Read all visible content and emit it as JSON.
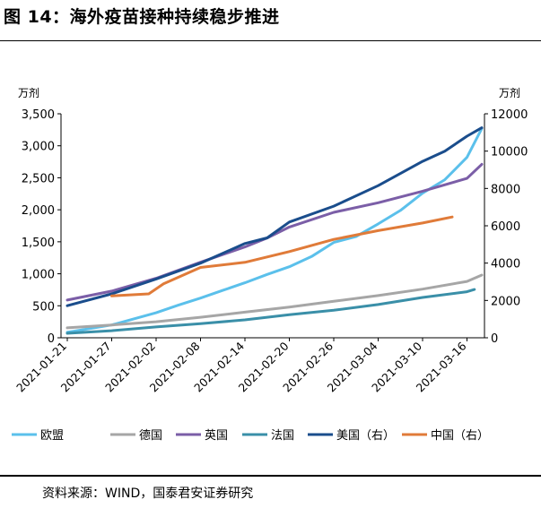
{
  "figure": {
    "title": "图 14：海外疫苗接种持续稳步推进",
    "source": "资料来源：WIND，国泰君安证券研究"
  },
  "chart_data": {
    "type": "line",
    "left_axis": {
      "unit_label": "万剂",
      "ylim": [
        0,
        3500
      ],
      "ticks": [
        0,
        500,
        1000,
        1500,
        2000,
        2500,
        3000,
        3500
      ],
      "tick_labels": [
        "0",
        "500",
        "1,000",
        "1,500",
        "2,000",
        "2,500",
        "3,000",
        "3,500"
      ]
    },
    "right_axis": {
      "unit_label": "万剂",
      "ylim": [
        0,
        12000
      ],
      "ticks": [
        0,
        2000,
        4000,
        6000,
        8000,
        10000,
        12000
      ],
      "tick_labels": [
        "0",
        "2000",
        "4000",
        "6000",
        "8000",
        "10000",
        "12000"
      ]
    },
    "x_range": [
      "2021-01-21",
      "2021-03-18"
    ],
    "x_ticks": [
      "2021-01-21",
      "2021-01-27",
      "2021-02-02",
      "2021-02-08",
      "2021-02-14",
      "2021-02-20",
      "2021-02-26",
      "2021-03-04",
      "2021-03-10",
      "2021-03-16"
    ],
    "grid": false,
    "legend_position": "bottom",
    "series": [
      {
        "name": "欧盟",
        "axis": "left",
        "color": "#5bc0eb",
        "points": [
          [
            "2021-01-21",
            85
          ],
          [
            "2021-01-27",
            200
          ],
          [
            "2021-02-02",
            390
          ],
          [
            "2021-02-05",
            510
          ],
          [
            "2021-02-08",
            620
          ],
          [
            "2021-02-11",
            740
          ],
          [
            "2021-02-14",
            860
          ],
          [
            "2021-02-17",
            990
          ],
          [
            "2021-02-20",
            1110
          ],
          [
            "2021-02-23",
            1270
          ],
          [
            "2021-02-26",
            1490
          ],
          [
            "2021-03-01",
            1580
          ],
          [
            "2021-03-04",
            1780
          ],
          [
            "2021-03-07",
            1990
          ],
          [
            "2021-03-10",
            2260
          ],
          [
            "2021-03-13",
            2470
          ],
          [
            "2021-03-16",
            2820
          ],
          [
            "2021-03-18",
            3270
          ]
        ]
      },
      {
        "name": "德国",
        "axis": "left",
        "color": "#a6a6a6",
        "points": [
          [
            "2021-01-21",
            155
          ],
          [
            "2021-01-27",
            200
          ],
          [
            "2021-02-02",
            250
          ],
          [
            "2021-02-08",
            320
          ],
          [
            "2021-02-14",
            400
          ],
          [
            "2021-02-20",
            480
          ],
          [
            "2021-02-26",
            570
          ],
          [
            "2021-03-04",
            660
          ],
          [
            "2021-03-10",
            760
          ],
          [
            "2021-03-16",
            880
          ],
          [
            "2021-03-18",
            980
          ]
        ]
      },
      {
        "name": "英国",
        "axis": "left",
        "color": "#7b5ea7",
        "points": [
          [
            "2021-01-21",
            590
          ],
          [
            "2021-01-27",
            730
          ],
          [
            "2021-02-02",
            930
          ],
          [
            "2021-02-08",
            1180
          ],
          [
            "2021-02-14",
            1420
          ],
          [
            "2021-02-17",
            1560
          ],
          [
            "2021-02-20",
            1730
          ],
          [
            "2021-02-26",
            1960
          ],
          [
            "2021-03-04",
            2110
          ],
          [
            "2021-03-10",
            2290
          ],
          [
            "2021-03-16",
            2490
          ],
          [
            "2021-03-18",
            2710
          ]
        ]
      },
      {
        "name": "法国",
        "axis": "left",
        "color": "#3a8fa8",
        "points": [
          [
            "2021-01-21",
            70
          ],
          [
            "2021-01-27",
            110
          ],
          [
            "2021-02-02",
            170
          ],
          [
            "2021-02-08",
            220
          ],
          [
            "2021-02-14",
            280
          ],
          [
            "2021-02-20",
            360
          ],
          [
            "2021-02-26",
            430
          ],
          [
            "2021-03-04",
            520
          ],
          [
            "2021-03-10",
            630
          ],
          [
            "2021-03-16",
            720
          ],
          [
            "2021-03-17",
            755
          ]
        ]
      },
      {
        "name": "美国（右）",
        "axis": "right",
        "color": "#1a4d8c",
        "points": [
          [
            "2021-01-21",
            1720
          ],
          [
            "2021-01-27",
            2350
          ],
          [
            "2021-02-02",
            3150
          ],
          [
            "2021-02-08",
            4000
          ],
          [
            "2021-02-14",
            5050
          ],
          [
            "2021-02-17",
            5350
          ],
          [
            "2021-02-20",
            6200
          ],
          [
            "2021-02-26",
            7050
          ],
          [
            "2021-03-04",
            8150
          ],
          [
            "2021-03-10",
            9450
          ],
          [
            "2021-03-13",
            10000
          ],
          [
            "2021-03-16",
            10800
          ],
          [
            "2021-03-18",
            11250
          ]
        ]
      },
      {
        "name": "中国（右）",
        "axis": "right",
        "color": "#e07b39",
        "points": [
          [
            "2021-01-27",
            2240
          ],
          [
            "2021-02-01",
            2350
          ],
          [
            "2021-02-03",
            2890
          ],
          [
            "2021-02-08",
            3770
          ],
          [
            "2021-02-14",
            4040
          ],
          [
            "2021-02-20",
            4620
          ],
          [
            "2021-02-26",
            5270
          ],
          [
            "2021-03-04",
            5740
          ],
          [
            "2021-03-10",
            6150
          ],
          [
            "2021-03-14",
            6470
          ]
        ]
      }
    ]
  }
}
